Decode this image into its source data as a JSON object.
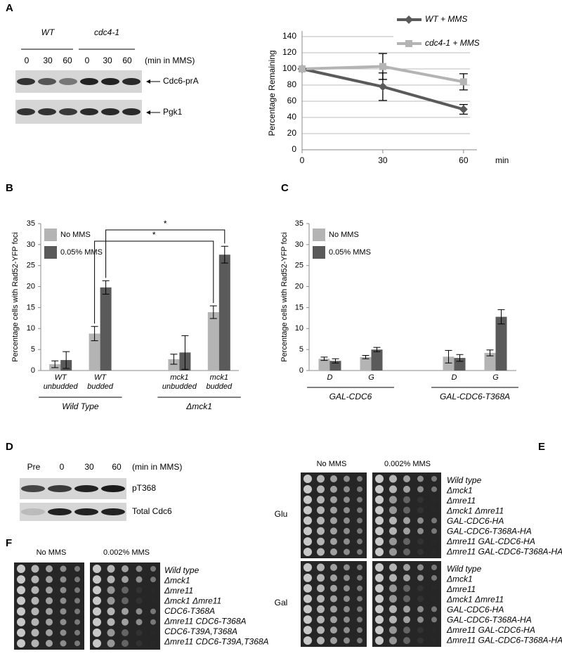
{
  "labels": [
    "A",
    "B",
    "C",
    "D",
    "E",
    "F"
  ],
  "blot_a": {
    "strains": [
      "WT",
      "cdc4-1"
    ],
    "times": [
      "0",
      "30",
      "60",
      "0",
      "30",
      "60"
    ],
    "unit": "(min in MMS)",
    "bands": [
      "Cdc6-prA",
      "Pgk1"
    ]
  },
  "chart_data": [
    {
      "type": "line",
      "x": [
        0,
        30,
        60
      ],
      "xlim": [
        0,
        65
      ],
      "xticks": [
        0,
        30,
        60
      ],
      "x_label": "min",
      "ylim": [
        0,
        140
      ],
      "yticks": [
        0,
        20,
        40,
        60,
        80,
        100,
        120,
        140
      ],
      "y_label": "Percentage Remaining",
      "grid": true,
      "series": [
        {
          "name": "WT + MMS",
          "color": "#5a5a5a",
          "marker": "diamond",
          "values": [
            100,
            78,
            50
          ],
          "errors": [
            0,
            17,
            6
          ]
        },
        {
          "name": "cdc4-1 + MMS",
          "color": "#b4b4b4",
          "marker": "square",
          "values": [
            100,
            103,
            84
          ],
          "errors": [
            0,
            16,
            10
          ]
        }
      ]
    },
    {
      "type": "bar",
      "categories": [
        "WT unbudded",
        "WT budded",
        "mck1 unbudded",
        "mck1 budded"
      ],
      "groups": [
        "Wild Type",
        "Δmck1"
      ],
      "ylim": [
        0,
        35
      ],
      "yticks": [
        0,
        5,
        10,
        15,
        20,
        25,
        30,
        35
      ],
      "y_label": "Percentage cells with Rad52-YFP foci",
      "annotations": [
        "*",
        "*"
      ],
      "series": [
        {
          "name": "No MMS",
          "color": "#b4b4b4",
          "values": [
            1.5,
            8.8,
            2.7,
            13.9
          ],
          "errors": [
            0.8,
            1.7,
            1.2,
            1.5
          ]
        },
        {
          "name": "0.05% MMS",
          "color": "#5a5a5a",
          "values": [
            2.5,
            19.8,
            4.3,
            27.6
          ],
          "errors": [
            2,
            1.6,
            4,
            2
          ]
        }
      ]
    },
    {
      "type": "bar",
      "categories": [
        "D",
        "G",
        "D",
        "G"
      ],
      "groups": [
        "GAL-CDC6",
        "GAL-CDC6-T368A"
      ],
      "ylim": [
        0,
        35
      ],
      "yticks": [
        0,
        5,
        10,
        15,
        20,
        25,
        30,
        35
      ],
      "y_label": "Percentage cells with Rad52-YFP foci",
      "series": [
        {
          "name": "No MMS",
          "color": "#b4b4b4",
          "values": [
            2.8,
            3.2,
            3.3,
            4.2
          ],
          "errors": [
            0.4,
            0.4,
            1.5,
            0.7
          ]
        },
        {
          "name": "0.05% MMS",
          "color": "#5a5a5a",
          "values": [
            2.3,
            5,
            3,
            12.8
          ],
          "errors": [
            0.5,
            0.5,
            0.8,
            1.7
          ]
        }
      ]
    }
  ],
  "blot_d": {
    "times": [
      "Pre",
      "0",
      "30",
      "60"
    ],
    "unit": "(min in MMS)",
    "bands": [
      "pT368",
      "Total Cdc6"
    ]
  },
  "plates_e": {
    "conditions": [
      "No MMS",
      "0.002% MMS"
    ],
    "media": [
      "Glu",
      "Gal"
    ],
    "strains": [
      "Wild type",
      "Δmck1",
      "Δmre11",
      "Δmck1 Δmre11",
      "GAL-CDC6-HA",
      "GAL-CDC6-T368A-HA",
      "Δmre11 GAL-CDC6-HA",
      "Δmre11 GAL-CDC6-T368A-HA"
    ]
  },
  "plates_f": {
    "conditions": [
      "No MMS",
      "0.002% MMS"
    ],
    "strains": [
      "Wild type",
      "Δmck1",
      "Δmre11",
      "Δmck1 Δmre11",
      "CDC6-T368A",
      "Δmre11 CDC6-T368A",
      "CDC6-T39A,T368A",
      "Δmre11 CDC6-T39A,T368A"
    ]
  }
}
